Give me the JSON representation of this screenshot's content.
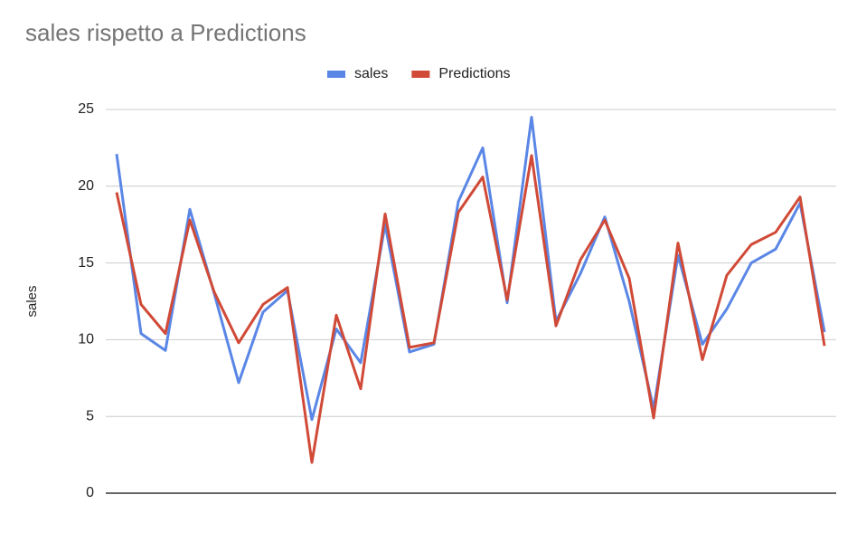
{
  "chart_data": {
    "type": "line",
    "title": "sales rispetto a Predictions",
    "y_label": "sales",
    "categories": [
      null,
      null,
      null,
      null,
      null,
      null,
      null,
      null,
      null,
      null,
      null,
      null,
      null,
      null,
      null,
      null,
      null,
      null,
      null,
      null,
      null,
      null,
      null,
      null,
      null,
      null,
      null,
      null,
      null,
      null
    ],
    "series": [
      {
        "name": "sales",
        "color": "#5a86e6",
        "values": [
          22.1,
          10.4,
          9.3,
          18.5,
          13.0,
          7.2,
          11.8,
          13.2,
          4.8,
          10.7,
          8.5,
          17.5,
          9.2,
          9.7,
          19.0,
          22.5,
          12.4,
          24.5,
          11.2,
          14.3,
          18.0,
          12.5,
          5.5,
          15.5,
          9.7,
          12.0,
          15.0,
          15.9,
          18.9,
          10.5
        ]
      },
      {
        "name": "Predictions",
        "color": "#d04a37",
        "values": [
          19.6,
          12.3,
          10.4,
          17.8,
          13.1,
          9.8,
          12.3,
          13.4,
          2.0,
          11.6,
          6.8,
          18.2,
          9.5,
          9.8,
          18.3,
          20.6,
          12.6,
          22.0,
          10.9,
          15.2,
          17.8,
          14.0,
          4.9,
          16.3,
          8.7,
          14.2,
          16.2,
          17.0,
          19.3,
          9.6
        ]
      }
    ],
    "ylim": [
      0,
      25
    ],
    "yticks": [
      0,
      5,
      10,
      15,
      20,
      25
    ],
    "grid": true,
    "legend": "top"
  }
}
